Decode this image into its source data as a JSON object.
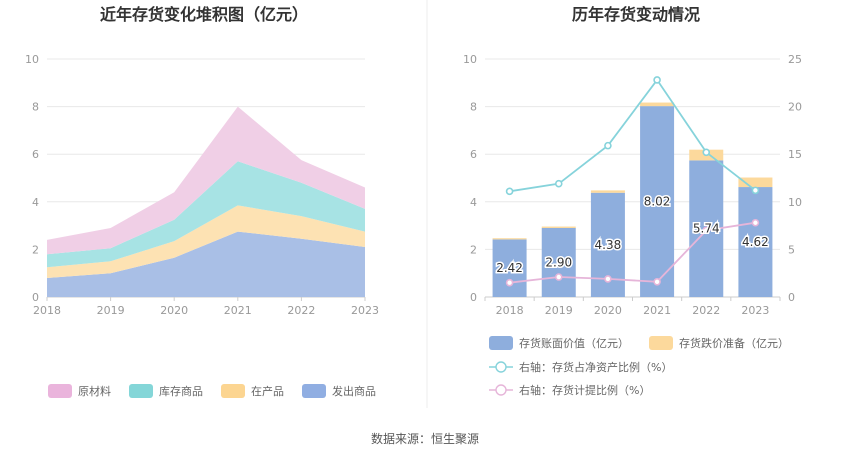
{
  "source": "数据来源：恒生聚源",
  "chart_data": [
    {
      "type": "area",
      "title": "近年存货变化堆积图（亿元）",
      "x": [
        "2018",
        "2019",
        "2020",
        "2021",
        "2022",
        "2023"
      ],
      "ylim": [
        0,
        10
      ],
      "yticks": [
        "0",
        "2",
        "4",
        "6",
        "8",
        "10"
      ],
      "stacked": true,
      "series": [
        {
          "name": "发出商品",
          "color": "#a9bfe6",
          "values": [
            0.8,
            1.0,
            1.65,
            2.75,
            2.45,
            2.1
          ]
        },
        {
          "name": "在产品",
          "color": "#fde2b3",
          "values": [
            0.45,
            0.5,
            0.7,
            1.1,
            0.95,
            0.65
          ]
        },
        {
          "name": "库存商品",
          "color": "#a7e3e4",
          "values": [
            0.55,
            0.55,
            0.9,
            1.85,
            1.4,
            0.95
          ]
        },
        {
          "name": "原材料",
          "color": "#f0cfe6",
          "values": [
            0.6,
            0.85,
            1.15,
            2.3,
            0.95,
            0.9
          ]
        }
      ],
      "legend": [
        {
          "name": "原材料",
          "color": "#eab4dc"
        },
        {
          "name": "库存商品",
          "color": "#84d6d8"
        },
        {
          "name": "在产品",
          "color": "#fcd591"
        },
        {
          "name": "发出商品",
          "color": "#90aee2"
        }
      ],
      "legend_position": "bottom",
      "grid": true
    },
    {
      "type": "bar",
      "title": "历年存货变动情况",
      "categories": [
        "2018",
        "2019",
        "2020",
        "2021",
        "2022",
        "2023"
      ],
      "ylim": [
        0,
        10
      ],
      "yticks": [
        "0",
        "2",
        "4",
        "6",
        "8",
        "10"
      ],
      "y2lim": [
        0,
        25
      ],
      "y2ticks": [
        "0",
        "5",
        "10",
        "15",
        "20",
        "25"
      ],
      "stacked": true,
      "series": [
        {
          "name": "存货账面价值（亿元）",
          "color": "#8eaedd",
          "axis": "left",
          "values": [
            2.42,
            2.9,
            4.38,
            8.02,
            5.74,
            4.62
          ],
          "labels": [
            "2.42",
            "2.90",
            "4.38",
            "8.02",
            "5.74",
            "4.62"
          ]
        },
        {
          "name": "存货跌价准备（亿元）",
          "color": "#fcd99c",
          "axis": "left",
          "values": [
            0.05,
            0.06,
            0.1,
            0.15,
            0.45,
            0.4
          ]
        },
        {
          "name": "右轴：存货占净资产比例（%）",
          "type": "line",
          "color": "#86d3db",
          "axis": "right",
          "values": [
            11.1,
            11.9,
            15.9,
            22.8,
            15.2,
            11.2
          ]
        },
        {
          "name": "右轴：存货计提比例（%）",
          "type": "line",
          "color": "#e6b5d9",
          "axis": "right",
          "values": [
            1.5,
            2.1,
            1.9,
            1.6,
            7.0,
            7.8
          ]
        }
      ],
      "legend_position": "bottom",
      "grid": true
    }
  ]
}
